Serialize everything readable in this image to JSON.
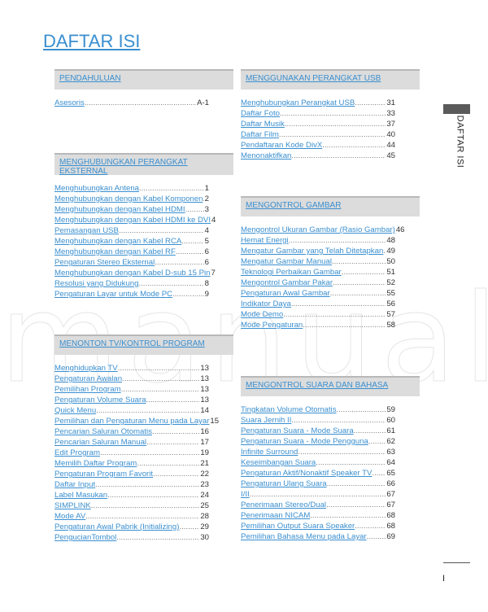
{
  "title": "DAFTAR ISI",
  "side_tab": "DAFTAR ISI",
  "page_num": "I",
  "watermark": "manuals",
  "sections": [
    {
      "title": "PENDAHULUAN",
      "items": [
        [
          "Asesoris",
          "A-1"
        ]
      ]
    },
    {
      "title": "MENGHUBUNGKAN PERANGKAT EKSTERNAL",
      "items": [
        [
          "Menghubungkan Antena",
          "1"
        ],
        [
          "Menghubungkan dengan Kabel Komponen",
          "2"
        ],
        [
          "Menghubungkan dengan Kabel HDMI",
          "3"
        ],
        [
          "Menghubungkan dengan Kabel HDMI ke DVI",
          "4"
        ],
        [
          "Pemasangan USB",
          "4"
        ],
        [
          "Menghubungkan dengan Kabel RCA",
          "5"
        ],
        [
          "Menghubungkan dengan Kabel RF",
          "6"
        ],
        [
          "Pengaturan Stereo Eksternal",
          "6"
        ],
        [
          "Menghubungkan dengan Kabel D-sub 15 Pin",
          "7"
        ],
        [
          "Resolusi yang Didukung",
          "8"
        ],
        [
          "Pengaturan Layar untuk Mode PC",
          "9"
        ]
      ]
    },
    {
      "title": "MENONTON TV/KONTROL PROGRAM",
      "items": [
        [
          "Menghidupkan TV",
          "13"
        ],
        [
          "Pengaturan Awalan",
          "13"
        ],
        [
          "Pemilihan Program",
          "13"
        ],
        [
          "Pengaturan Volume Suara",
          "13"
        ],
        [
          "Quick Menu",
          "14"
        ],
        [
          "Pemilihan dan Pengaturan Menu pada Layar",
          "15"
        ],
        [
          "Pencarian Saluran Otomatis",
          "16"
        ],
        [
          "Pencarian Saluran Manual",
          "17"
        ],
        [
          "Edit Program",
          "19"
        ],
        [
          "Memilih Daftar Program",
          "21"
        ],
        [
          "Pengaturan Program Favorit",
          "22"
        ],
        [
          "Daftar Input",
          "23"
        ],
        [
          "Label Masukan",
          "24"
        ],
        [
          "SIMPLINK",
          "25"
        ],
        [
          "Mode AV",
          "28"
        ],
        [
          "Pengaturan Awal Pabrik (Initializing)",
          "29"
        ],
        [
          "PengucianTombol",
          "30"
        ]
      ]
    },
    {
      "title": "MENGGUNAKAN PERANGKAT USB",
      "items": [
        [
          "Menghubungkan Perangkat USB",
          "31"
        ],
        [
          "Daftar Foto",
          "33"
        ],
        [
          "Daftar Musik",
          "37"
        ],
        [
          "Daftar Film",
          "40"
        ],
        [
          "Pendaftaran Kode DivX",
          "44"
        ],
        [
          "Menonaktifkan",
          "45"
        ]
      ]
    },
    {
      "title": "MENGONTROL GAMBAR",
      "items": [
        [
          "Mengontrol Ukuran Gambar (Rasio Gambar)",
          "46"
        ],
        [
          "Hemat Energi",
          "48"
        ],
        [
          "Mengatur Gambar yang Telah Ditetapkan",
          "49"
        ],
        [
          "Mengatur Gambar Manual",
          "50"
        ],
        [
          "Teknologi Perbaikan Gambar",
          "51"
        ],
        [
          "Mengontrol Gambar Pakar",
          "52"
        ],
        [
          "Pengaturan Awal Gambar",
          "55"
        ],
        [
          "Indikator Daya",
          "56"
        ],
        [
          "Mode Demo",
          "57"
        ],
        [
          "Mode Pengaturan",
          "58"
        ]
      ]
    },
    {
      "title": "MENGONTROL SUARA DAN BAHASA",
      "items": [
        [
          "Tingkatan Volume Otomatis",
          "59"
        ],
        [
          "Suara Jernih II",
          "60"
        ],
        [
          "Pengaturan Suara - Mode Suara",
          "61"
        ],
        [
          "Pengaturan Suara - Mode Pengguna",
          "62"
        ],
        [
          "Infinite Surround",
          "63"
        ],
        [
          "Keseimbangan Suara",
          "64"
        ],
        [
          "Pengaturan Aktif/Nonaktif Speaker TV",
          "65"
        ],
        [
          "Pengaturan Ulang Suara",
          "66"
        ],
        [
          "I/II",
          "67"
        ],
        [
          "Penerimaan Stereo/Dual",
          "67"
        ],
        [
          "Penerimaan NICAM",
          "68"
        ],
        [
          "Pemilihan Output Suara Speaker",
          "68"
        ],
        [
          "Pemilihan Bahasa Menu pada Layar",
          "69"
        ]
      ]
    }
  ]
}
